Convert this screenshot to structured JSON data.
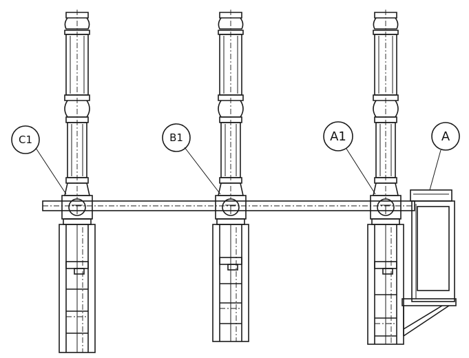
{
  "diagram": {
    "labels": {
      "c1": "C1",
      "b1": "B1",
      "a1": "A1",
      "a": "A"
    },
    "colors": {
      "ink": "#1a1a1a",
      "paper": "#ffffff"
    }
  }
}
